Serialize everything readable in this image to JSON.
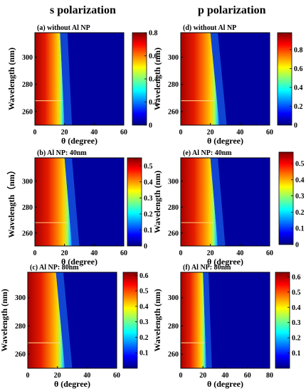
{
  "figure": {
    "column_titles": [
      "s polarization",
      "p polarization"
    ]
  },
  "chart_data": [
    {
      "type": "heatmap",
      "panel_label": "(a) without Al NP",
      "polarization": "s",
      "xlabel": "θ (degree)",
      "ylabel": "Wavelength (nm)",
      "xlim": [
        0,
        60
      ],
      "ylim": [
        250,
        318
      ],
      "xticks": [
        "0",
        "20",
        "40",
        "60"
      ],
      "yticks": [
        "260",
        "280",
        "300"
      ],
      "colorbar_range": [
        0,
        0.8
      ],
      "colorbar_ticks": [
        "0",
        "0.2",
        "0.4",
        "0.6",
        "0.8"
      ],
      "cutoff_angle_deg": {
        "at_250nm": 20,
        "at_318nm": 17
      },
      "peak_value": 0.8,
      "feature_wavelength_nm": 268,
      "colormap": "jet"
    },
    {
      "type": "heatmap",
      "panel_label": "(b) Al NP: 40nm",
      "polarization": "s",
      "xlabel": "θ (degree)",
      "ylabel": "Wavelength（nm）",
      "xlim": [
        0,
        60
      ],
      "ylim": [
        250,
        318
      ],
      "xticks": [
        "0",
        "20",
        "40",
        "60"
      ],
      "yticks": [
        "260",
        "280",
        "300"
      ],
      "colorbar_range": [
        0,
        0.55
      ],
      "colorbar_ticks": [
        "0",
        "0.1",
        "0.2",
        "0.3",
        "0.4",
        "0.5"
      ],
      "cutoff_angle_deg": {
        "at_250nm": 25,
        "at_318nm": 20
      },
      "peak_value": 0.55,
      "feature_wavelength_nm": 268,
      "colormap": "jet"
    },
    {
      "type": "heatmap",
      "panel_label": "(c) Al NP: 80nm",
      "polarization": "s",
      "xlabel": "θ (degree)",
      "ylabel": "Wavelength (nm)",
      "xlim": [
        0,
        60
      ],
      "ylim": [
        250,
        318
      ],
      "xticks": [
        "0",
        "20",
        "40",
        "60"
      ],
      "yticks": [
        "260",
        "280",
        "300"
      ],
      "colorbar_range": [
        0,
        0.62
      ],
      "colorbar_ticks": [
        "0.1",
        "0.2",
        "0.3",
        "0.4",
        "0.5",
        "0.6"
      ],
      "cutoff_angle_deg": {
        "at_250nm": 25,
        "at_318nm": 19
      },
      "peak_value": 0.62,
      "feature_wavelength_nm": 268,
      "colormap": "jet"
    },
    {
      "type": "heatmap",
      "panel_label": "(d) without Al NP",
      "polarization": "p",
      "xlabel": "θ (degree)",
      "ylabel": "Wavelength (nm)",
      "xlim": [
        0,
        60
      ],
      "ylim": [
        250,
        318
      ],
      "xticks": [
        "0",
        "20",
        "40",
        "60"
      ],
      "yticks": [
        "260",
        "280",
        "300"
      ],
      "colorbar_range": [
        0,
        0.98
      ],
      "colorbar_ticks": [
        "0",
        "0.2",
        "0.4",
        "0.6",
        "0.8"
      ],
      "cutoff_angle_deg": {
        "at_250nm": 26,
        "at_318nm": 20
      },
      "peak_value": 0.98,
      "feature_wavelength_nm": 268,
      "colormap": "jet"
    },
    {
      "type": "heatmap",
      "panel_label": "(e) Al NP: 40nm",
      "polarization": "p",
      "xlabel": "θ (degree)",
      "ylabel": "Wavelength (nm)",
      "xlim": [
        0,
        60
      ],
      "ylim": [
        250,
        318
      ],
      "xticks": [
        "0",
        "20",
        "40",
        "60"
      ],
      "yticks": [
        "260",
        "280",
        "300"
      ],
      "colorbar_range": [
        0,
        0.57
      ],
      "colorbar_ticks": [
        "0",
        "0.1",
        "0.2",
        "0.3",
        "0.4",
        "0.5"
      ],
      "cutoff_angle_deg": {
        "at_250nm": 25,
        "at_318nm": 20
      },
      "peak_value": 0.57,
      "feature_wavelength_nm": 268,
      "colormap": "jet"
    },
    {
      "type": "heatmap",
      "panel_label": "(f) Al NP: 80nm",
      "polarization": "p",
      "xlabel": "θ (degree)",
      "ylabel": "Wavelength (nm)",
      "xlim": [
        0,
        80
      ],
      "ylim": [
        250,
        318
      ],
      "xticks": [
        "0",
        "20",
        "40",
        "60",
        "80"
      ],
      "yticks": [
        "260",
        "280",
        "300"
      ],
      "colorbar_range": [
        0,
        0.63
      ],
      "colorbar_ticks": [
        "0.1",
        "0.2",
        "0.3",
        "0.4",
        "0.5",
        "0.6"
      ],
      "cutoff_angle_deg": {
        "at_250nm": 23,
        "at_318nm": 20
      },
      "peak_value": 0.63,
      "feature_wavelength_nm": 268,
      "colormap": "jet"
    }
  ]
}
